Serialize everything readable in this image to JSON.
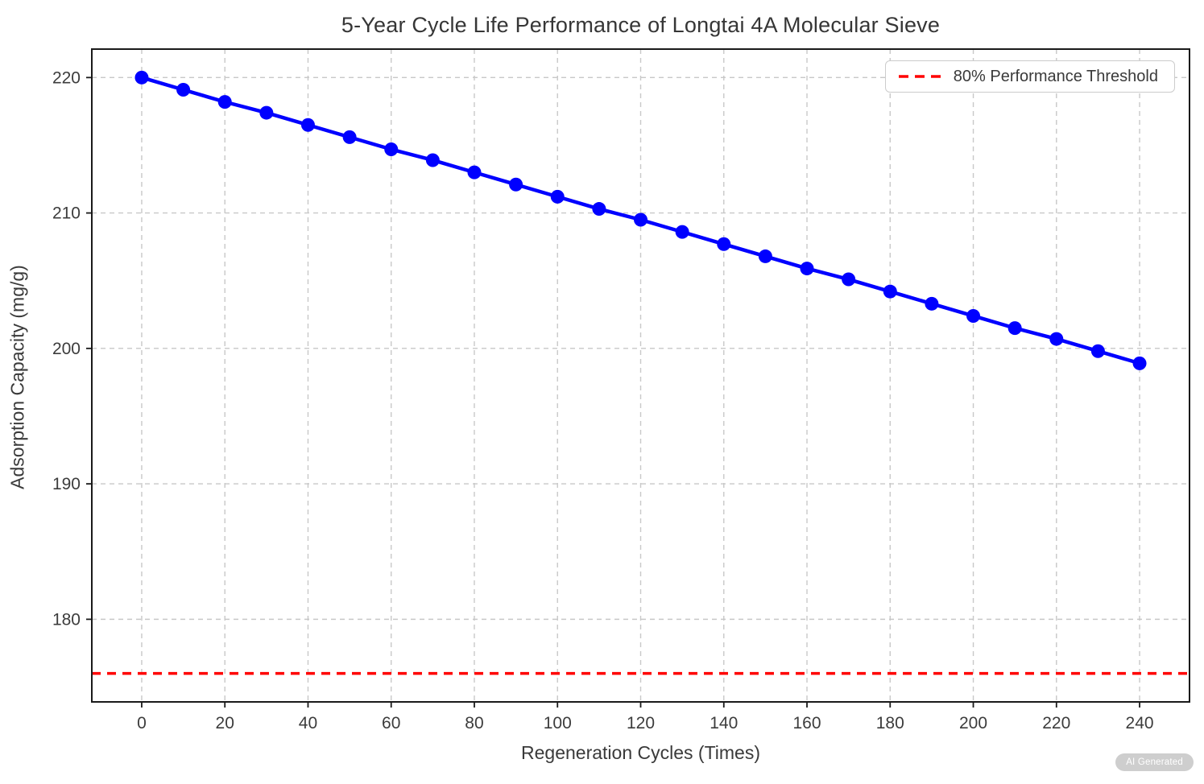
{
  "chart_data": {
    "type": "line",
    "title": "5-Year Cycle Life Performance of Longtai 4A Molecular Sieve",
    "xlabel": "Regeneration Cycles (Times)",
    "ylabel": "Adsorption Capacity (mg/g)",
    "x": [
      0,
      10,
      20,
      30,
      40,
      50,
      60,
      70,
      80,
      90,
      100,
      110,
      120,
      130,
      140,
      150,
      160,
      170,
      180,
      190,
      200,
      210,
      220,
      230,
      240
    ],
    "series": [
      {
        "name": "Adsorption Capacity",
        "color": "#0000ff",
        "marker": "circle",
        "values": [
          220.0,
          219.1,
          218.2,
          217.4,
          216.5,
          215.6,
          214.7,
          213.9,
          213.0,
          212.1,
          211.2,
          210.3,
          209.5,
          208.6,
          207.7,
          206.8,
          205.9,
          205.1,
          204.2,
          203.3,
          202.4,
          201.5,
          200.7,
          199.8,
          198.9
        ]
      }
    ],
    "threshold_line": {
      "value": 176,
      "color": "#ff0000",
      "linestyle": "dashed"
    },
    "legend": {
      "position": "upper right",
      "items": [
        {
          "label": "80% Performance Threshold",
          "color": "#ff0000",
          "linestyle": "dashed"
        }
      ]
    },
    "xticks": [
      0,
      20,
      40,
      60,
      80,
      100,
      120,
      140,
      160,
      180,
      200,
      220,
      240
    ],
    "yticks": [
      180,
      190,
      200,
      210,
      220
    ],
    "xlim": [
      -12,
      252
    ],
    "ylim": [
      173.9,
      222.1
    ],
    "grid": true,
    "grid_color": "#c8c8c8",
    "axis_color": "#1a1a1a",
    "tick_label_color": "#3c3c3c"
  },
  "ai_badge": {
    "label": "AI Generated"
  }
}
